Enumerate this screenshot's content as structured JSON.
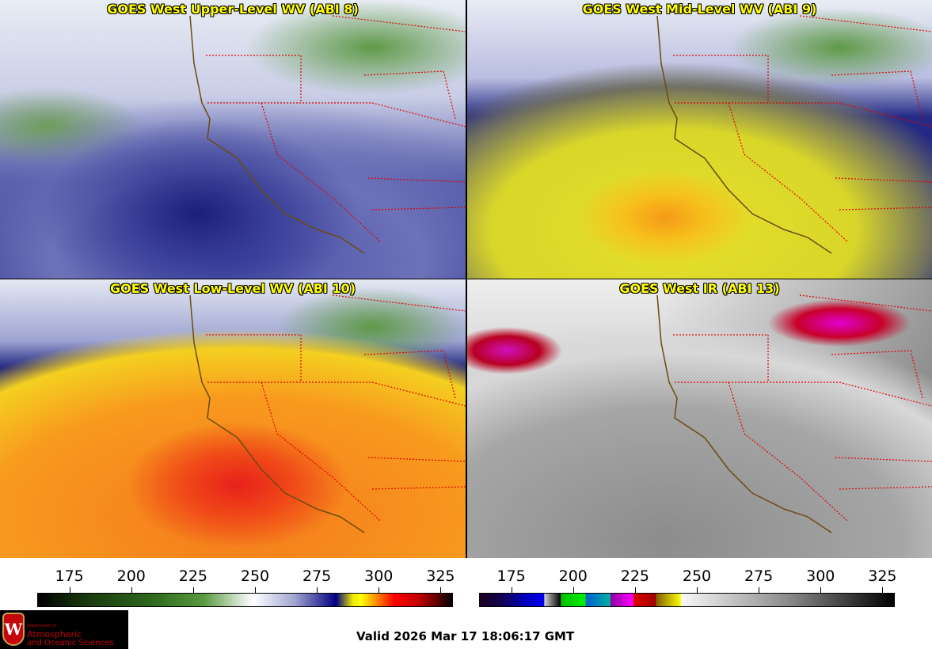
{
  "panels": [
    {
      "title": "GOES West Upper-Level WV (ABI 8)"
    },
    {
      "title": "GOES West Mid-Level WV (ABI 9)"
    },
    {
      "title": "GOES West Low-Level WV (ABI 10)"
    },
    {
      "title": "GOES West IR (ABI 13)"
    }
  ],
  "colorbars": [
    {
      "name": "water-vapor",
      "min": 162,
      "max": 330,
      "ticks": [
        "175",
        "200",
        "225",
        "250",
        "275",
        "300",
        "325"
      ],
      "tick_values": [
        175,
        200,
        225,
        250,
        275,
        300,
        325
      ]
    },
    {
      "name": "infrared",
      "min": 162,
      "max": 330,
      "ticks": [
        "175",
        "200",
        "225",
        "250",
        "275",
        "300",
        "325"
      ],
      "tick_values": [
        175,
        200,
        225,
        250,
        275,
        300,
        325
      ]
    }
  ],
  "logo": {
    "line1": "Department of",
    "line2": "Atmospheric",
    "line3": "and Oceanic Sciences",
    "crest_letter": "W"
  },
  "valid_time": "Valid 2026 Mar 17 18:06:17 GMT",
  "colors": {
    "title": "#ffff00",
    "state_borders": "#e00000",
    "coastline": "#6b4a10"
  }
}
